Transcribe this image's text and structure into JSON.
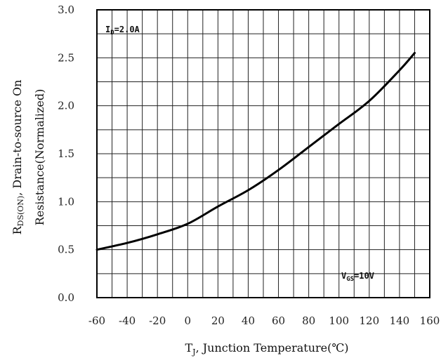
{
  "chart_data": {
    "type": "line",
    "xlabel": "TJ, Junction Temperature(℃)",
    "ylabel_line1": "RDS(ON), Drain-to-source On",
    "ylabel_line2": "Resistance(Normalized)",
    "xlim": [
      -60,
      160
    ],
    "ylim": [
      0.0,
      3.0
    ],
    "x_ticks": [
      "-60",
      "-40",
      "-20",
      "0",
      "20",
      "40",
      "60",
      "80",
      "100",
      "120",
      "140",
      "160"
    ],
    "y_ticks": [
      "0.0",
      "0.5",
      "1.0",
      "1.5",
      "2.0",
      "2.5",
      "3.0"
    ],
    "x_tick_values": [
      -60,
      -40,
      -20,
      0,
      20,
      40,
      60,
      80,
      100,
      120,
      140,
      160
    ],
    "y_tick_values": [
      0.0,
      0.5,
      1.0,
      1.5,
      2.0,
      2.5,
      3.0
    ],
    "x_grid_values": [
      -60,
      -50,
      -40,
      -30,
      -20,
      -10,
      0,
      10,
      20,
      30,
      40,
      50,
      60,
      70,
      80,
      90,
      100,
      110,
      120,
      130,
      140,
      150,
      160
    ],
    "y_grid_values": [
      0.0,
      0.25,
      0.5,
      0.75,
      1.0,
      1.25,
      1.5,
      1.75,
      2.0,
      2.25,
      2.5,
      2.75,
      3.0
    ],
    "grid": true,
    "series": [
      {
        "x": [
          -60,
          -40,
          -20,
          0,
          20,
          40,
          60,
          80,
          100,
          120,
          140,
          150
        ],
        "y": [
          0.5,
          0.57,
          0.66,
          0.77,
          0.95,
          1.12,
          1.33,
          1.57,
          1.81,
          2.05,
          2.37,
          2.55
        ]
      }
    ],
    "annotations": {
      "current": {
        "text": "ID=2.0A",
        "main": "I",
        "sub": "D",
        "rest": "=2.0A"
      },
      "voltage": {
        "text": "VGS=10V",
        "main": "V",
        "sub": "GS",
        "rest": "=10V"
      }
    },
    "xlabel_parts": {
      "main": "T",
      "sub": "J",
      "rest": ", Junction Temperature(℃)"
    },
    "ylabel_parts": {
      "main": "R",
      "sub": "DS(ON)",
      "rest": ", Drain-to-source On",
      "line2": "Resistance(Normalized)"
    }
  }
}
